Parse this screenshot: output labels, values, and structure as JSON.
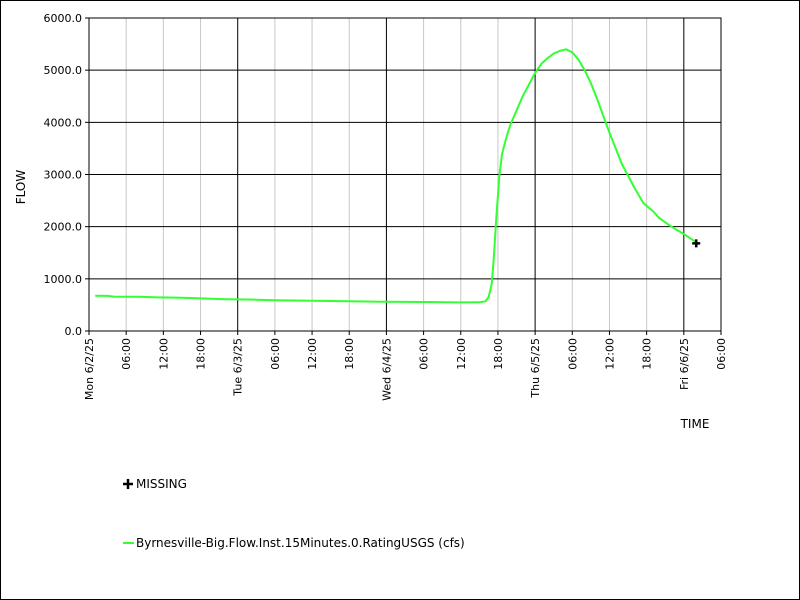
{
  "chart_data": {
    "type": "line",
    "xlabel": "TIME",
    "ylabel": "FLOW",
    "ylim": [
      0,
      6000
    ],
    "xlim": [
      "2025-06-02 00:00",
      "2025-06-06 06:00"
    ],
    "y_ticks": [
      "0.0",
      "1000.0",
      "2000.0",
      "3000.0",
      "4000.0",
      "5000.0",
      "6000.0"
    ],
    "x_ticks": [
      "Mon 6/2/25",
      "06:00",
      "12:00",
      "18:00",
      "Tue 6/3/25",
      "06:00",
      "12:00",
      "18:00",
      "Wed 6/4/25",
      "06:00",
      "12:00",
      "18:00",
      "Thu 6/5/25",
      "06:00",
      "12:00",
      "18:00",
      "Fri 6/6/25",
      "06:00"
    ],
    "grid": true,
    "series": [
      {
        "name": "Byrnesville-Big.Flow.Inst.15Minutes.0.RatingUSGS (cfs)",
        "color": "#33ff33",
        "points": [
          [
            "2025-06-02 01:00",
            675
          ],
          [
            "2025-06-02 03:00",
            672
          ],
          [
            "2025-06-02 04:00",
            660
          ],
          [
            "2025-06-02 08:00",
            655
          ],
          [
            "2025-06-02 11:00",
            645
          ],
          [
            "2025-06-02 14:00",
            640
          ],
          [
            "2025-06-02 17:00",
            630
          ],
          [
            "2025-06-02 22:00",
            610
          ],
          [
            "2025-06-03 03:00",
            600
          ],
          [
            "2025-06-03 06:00",
            590
          ],
          [
            "2025-06-03 12:00",
            580
          ],
          [
            "2025-06-03 18:00",
            570
          ],
          [
            "2025-06-04 00:00",
            560
          ],
          [
            "2025-06-04 06:00",
            555
          ],
          [
            "2025-06-04 12:00",
            548
          ],
          [
            "2025-06-04 15:00",
            550
          ],
          [
            "2025-06-04 16:00",
            570
          ],
          [
            "2025-06-04 16:30",
            650
          ],
          [
            "2025-06-04 17:00",
            900
          ],
          [
            "2025-06-04 17:20",
            1400
          ],
          [
            "2025-06-04 17:45",
            2200
          ],
          [
            "2025-06-04 18:15",
            3000
          ],
          [
            "2025-06-04 18:40",
            3400
          ],
          [
            "2025-06-04 19:20",
            3700
          ],
          [
            "2025-06-04 20:00",
            3950
          ],
          [
            "2025-06-04 22:00",
            4500
          ],
          [
            "2025-06-05 00:00",
            4950
          ],
          [
            "2025-06-05 01:00",
            5120
          ],
          [
            "2025-06-05 02:00",
            5230
          ],
          [
            "2025-06-05 03:00",
            5320
          ],
          [
            "2025-06-05 04:00",
            5370
          ],
          [
            "2025-06-05 05:00",
            5400
          ],
          [
            "2025-06-05 06:00",
            5340
          ],
          [
            "2025-06-05 07:00",
            5200
          ],
          [
            "2025-06-05 08:00",
            5000
          ],
          [
            "2025-06-05 09:00",
            4750
          ],
          [
            "2025-06-05 10:00",
            4450
          ],
          [
            "2025-06-05 12:00",
            3800
          ],
          [
            "2025-06-05 14:00",
            3200
          ],
          [
            "2025-06-05 16:00",
            2750
          ],
          [
            "2025-06-05 17:30",
            2450
          ],
          [
            "2025-06-05 19:00",
            2300
          ],
          [
            "2025-06-05 20:00",
            2170
          ],
          [
            "2025-06-05 22:00",
            2000
          ],
          [
            "2025-06-06 00:00",
            1860
          ],
          [
            "2025-06-06 01:00",
            1780
          ],
          [
            "2025-06-06 02:00",
            1700
          ]
        ]
      },
      {
        "name": "MISSING",
        "marker": "plus",
        "color": "#000000",
        "points": [
          [
            "2025-06-06 02:00",
            1680
          ]
        ]
      }
    ]
  }
}
